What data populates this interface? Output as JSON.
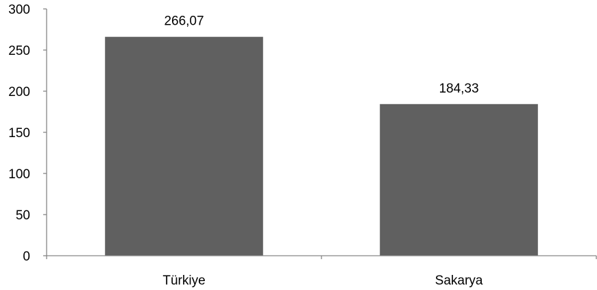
{
  "chart_data": {
    "type": "bar",
    "categories": [
      "Türkiye",
      "Sakarya"
    ],
    "values": [
      266.07,
      184.33
    ],
    "data_labels": [
      "266,07",
      "184,33"
    ],
    "title": "",
    "xlabel": "",
    "ylabel": "",
    "ylim": [
      0,
      300
    ],
    "yticks": [
      0,
      50,
      100,
      150,
      200,
      250,
      300
    ],
    "ytick_labels": [
      "0",
      "50",
      "100",
      "150",
      "200",
      "250",
      "300"
    ],
    "grid": false,
    "legend": "none",
    "colors": {
      "bar": "#606060",
      "axis": "#868686"
    }
  }
}
